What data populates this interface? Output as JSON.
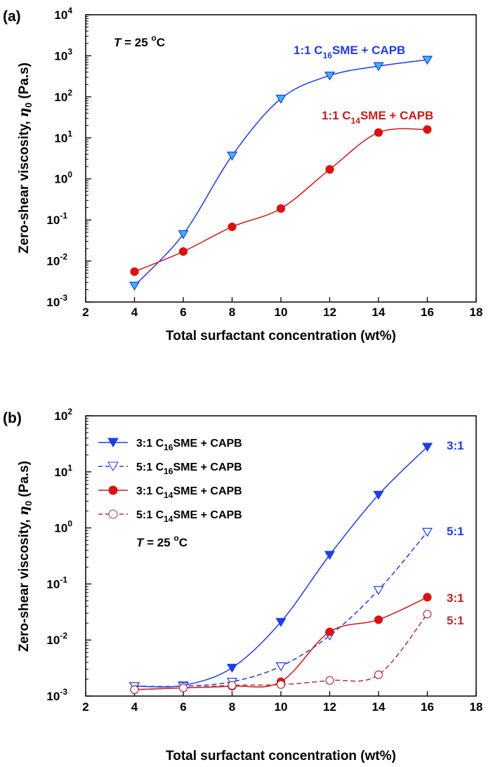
{
  "figure": {
    "colors": {
      "blue": "#1f3de8",
      "red": "#cc1a1a",
      "cyan_marker": "#37b6ef",
      "darkred": "#b0303a"
    }
  },
  "chart_data": [
    {
      "type": "line",
      "panel_label": "(a)",
      "xlabel": "Total surfactant concentration (wt%)",
      "ylabel_main": "Zero-shear viscosity, ",
      "ylabel_symbol": "η",
      "ylabel_sub": "0",
      "ylabel_unit": " (Pa.s)",
      "xlim": [
        2,
        18
      ],
      "xticks": [
        2,
        4,
        6,
        8,
        10,
        12,
        14,
        16,
        18
      ],
      "ylim": [
        0.001,
        10000
      ],
      "yscale": "log",
      "ytick_exponents": [
        -3,
        -2,
        -1,
        0,
        1,
        2,
        3,
        4
      ],
      "annotation_temperature": {
        "T": "T",
        "rest": " = 25 ",
        "deg": "o",
        "unit": "C"
      },
      "series": [
        {
          "name": "1:1 C16SME + CAPB",
          "name_parts": [
            "1:1 C",
            "16",
            "SME + CAPB"
          ],
          "color": "#1f3de8",
          "marker": "triangle-down",
          "marker_fill": "#37b6ef",
          "dashed": false,
          "x": [
            4,
            6,
            8,
            10,
            12,
            14,
            16
          ],
          "y": [
            0.0025,
            0.045,
            3.7,
            90,
            330,
            560,
            800
          ]
        },
        {
          "name": "1:1 C14SME + CAPB",
          "name_parts": [
            "1:1 C",
            "14",
            "SME + CAPB"
          ],
          "color": "#cc1a1a",
          "marker": "circle",
          "marker_fill": "#e01010",
          "dashed": false,
          "x": [
            4,
            6,
            8,
            10,
            12,
            14,
            16
          ],
          "y": [
            0.0055,
            0.017,
            0.068,
            0.19,
            1.7,
            13.5,
            16
          ]
        }
      ]
    },
    {
      "type": "line",
      "panel_label": "(b)",
      "xlabel": "Total surfactant concentration (wt%)",
      "ylabel_main": "Zero-shear viscosity, ",
      "ylabel_symbol": "η",
      "ylabel_sub": "0",
      "ylabel_unit": " (Pa.s)",
      "xlim": [
        2,
        18
      ],
      "xticks": [
        2,
        4,
        6,
        8,
        10,
        12,
        14,
        16,
        18
      ],
      "ylim": [
        0.001,
        100
      ],
      "yscale": "log",
      "ytick_exponents": [
        -3,
        -2,
        -1,
        0,
        1,
        2
      ],
      "annotation_temperature": {
        "T": "T",
        "rest": " = 25 ",
        "deg": "o",
        "unit": "C"
      },
      "legend_position": "top-left",
      "series": [
        {
          "name": "3:1 C16SME + CAPB",
          "name_parts": [
            "3:1 C",
            "16",
            "SME + CAPB"
          ],
          "end_label": "3:1",
          "color": "#1f3de8",
          "marker": "triangle-down",
          "marker_fill": "#1f3de8",
          "dashed": false,
          "x": [
            4,
            6,
            8,
            10,
            12,
            14,
            16
          ],
          "y": [
            0.0015,
            0.00155,
            0.0032,
            0.021,
            0.33,
            3.9,
            28
          ]
        },
        {
          "name": "5:1 C16SME + CAPB",
          "name_parts": [
            "5:1 C",
            "16",
            "SME + CAPB"
          ],
          "end_label": "5:1",
          "color": "#1f3de8",
          "marker": "triangle-down",
          "marker_fill": "#ffffff",
          "dashed": true,
          "x": [
            4,
            6,
            8,
            10,
            12,
            14,
            16
          ],
          "y": [
            0.0015,
            0.0015,
            0.0018,
            0.0034,
            0.012,
            0.078,
            0.85
          ]
        },
        {
          "name": "3:1 C14SME + CAPB",
          "name_parts": [
            "3:1 C",
            "14",
            "SME + CAPB"
          ],
          "end_label": "3:1",
          "color": "#cc1a1a",
          "marker": "circle",
          "marker_fill": "#e01010",
          "dashed": false,
          "x": [
            4,
            6,
            8,
            10,
            12,
            14,
            16
          ],
          "y": [
            0.0013,
            0.0014,
            0.0015,
            0.0018,
            0.014,
            0.023,
            0.058
          ]
        },
        {
          "name": "5:1 C14SME + CAPB",
          "name_parts": [
            "5:1 C",
            "14",
            "SME + CAPB"
          ],
          "end_label": "5:1",
          "color": "#b0303a",
          "marker": "circle",
          "marker_fill": "#ffffff",
          "dashed": true,
          "x": [
            4,
            6,
            8,
            10,
            12,
            14,
            16
          ],
          "y": [
            0.0013,
            0.0014,
            0.00155,
            0.0016,
            0.0019,
            0.0024,
            0.029
          ]
        }
      ]
    }
  ]
}
